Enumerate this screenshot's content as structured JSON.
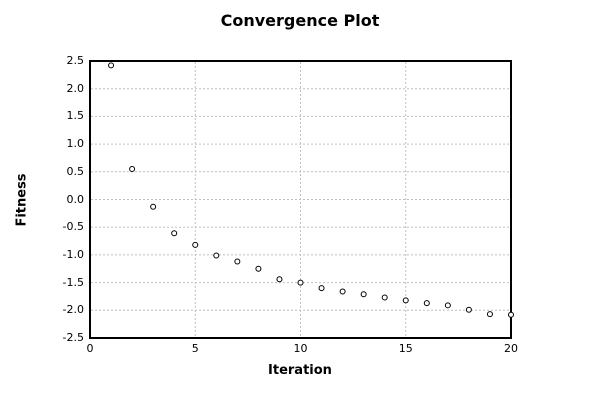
{
  "chart_data": {
    "type": "scatter",
    "title": "Convergence Plot",
    "xlabel": "Iteration",
    "ylabel": "Fitness",
    "x": [
      1,
      2,
      3,
      4,
      5,
      6,
      7,
      8,
      9,
      10,
      11,
      12,
      13,
      14,
      15,
      16,
      17,
      18,
      19,
      20
    ],
    "y": [
      2.42,
      0.55,
      -0.13,
      -0.61,
      -0.82,
      -1.01,
      -1.12,
      -1.25,
      -1.44,
      -1.5,
      -1.6,
      -1.66,
      -1.71,
      -1.77,
      -1.82,
      -1.87,
      -1.91,
      -1.99,
      -2.07,
      -2.08
    ],
    "series_name": "Fitness",
    "xlim": [
      0,
      20
    ],
    "ylim": [
      -2.5,
      2.5
    ],
    "x_tick_labels": [
      "0",
      "5",
      "10",
      "15",
      "20"
    ],
    "x_tick_values": [
      0,
      5,
      10,
      15,
      20
    ],
    "y_tick_labels": [
      "2.5",
      "2.0",
      "1.5",
      "1.0",
      "0.5",
      "0.0",
      "-0.5",
      "-1.0",
      "-1.5",
      "-2.0",
      "-2.5"
    ],
    "y_tick_values": [
      2.5,
      2.0,
      1.5,
      1.0,
      0.5,
      0.0,
      -0.5,
      -1.0,
      -1.5,
      -2.0,
      -2.5
    ],
    "x_gridline_values": [
      5,
      10,
      15
    ],
    "y_gridline_values": [
      2.0,
      1.5,
      1.0,
      0.5,
      0.0,
      -0.5,
      -1.0,
      -1.5,
      -2.0
    ],
    "grid": "dashed",
    "legend": "none",
    "marker": "open-circle",
    "colors": {
      "background": "#ffffff",
      "frame": "#000000",
      "grid": "#c0c0c0",
      "marker_stroke": "#000000",
      "marker_fill": "#ffffff",
      "text": "#000000"
    }
  }
}
